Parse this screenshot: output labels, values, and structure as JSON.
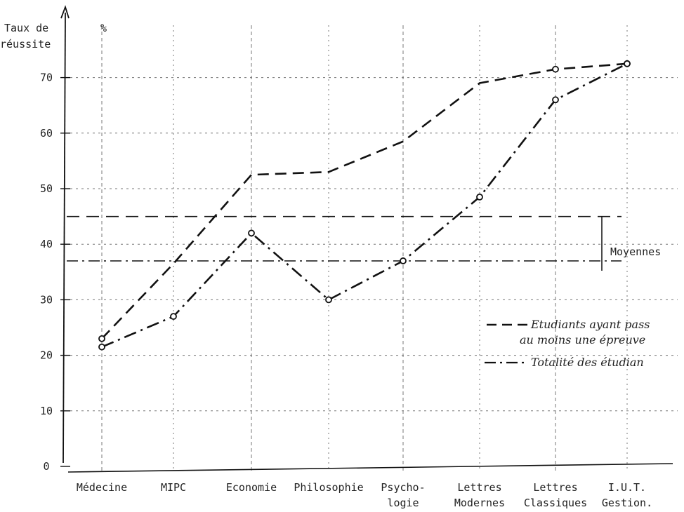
{
  "chart_data": {
    "type": "line",
    "ylabel_line1": "Taux de",
    "ylabel_line2": "réussite",
    "yunit": "%",
    "ylim": [
      0,
      75
    ],
    "yticks": [
      0,
      10,
      20,
      30,
      40,
      50,
      60,
      70
    ],
    "grid": true,
    "categories": [
      [
        "Médecine"
      ],
      [
        "MIPC"
      ],
      [
        "Economie"
      ],
      [
        "Philosophie"
      ],
      [
        "Psycho-",
        "logie"
      ],
      [
        "Lettres",
        "Modernes"
      ],
      [
        "Lettres",
        "Classiques"
      ],
      [
        "I.U.T.",
        "Gestion."
      ]
    ],
    "series": [
      {
        "name_line1": "Etudiants ayant pass",
        "name_line2": "au moins une épreuve",
        "style": "dashed",
        "values": [
          23,
          36.5,
          52.5,
          53,
          58.5,
          69,
          71.5,
          72.5
        ]
      },
      {
        "name_line1": "Totalité des étudian",
        "style": "dashdot",
        "values": [
          21.5,
          27,
          42,
          30,
          37,
          48.5,
          66,
          72.5
        ]
      }
    ],
    "averages": {
      "label": "Moyennes",
      "values": [
        45.5,
        37.5
      ]
    }
  }
}
